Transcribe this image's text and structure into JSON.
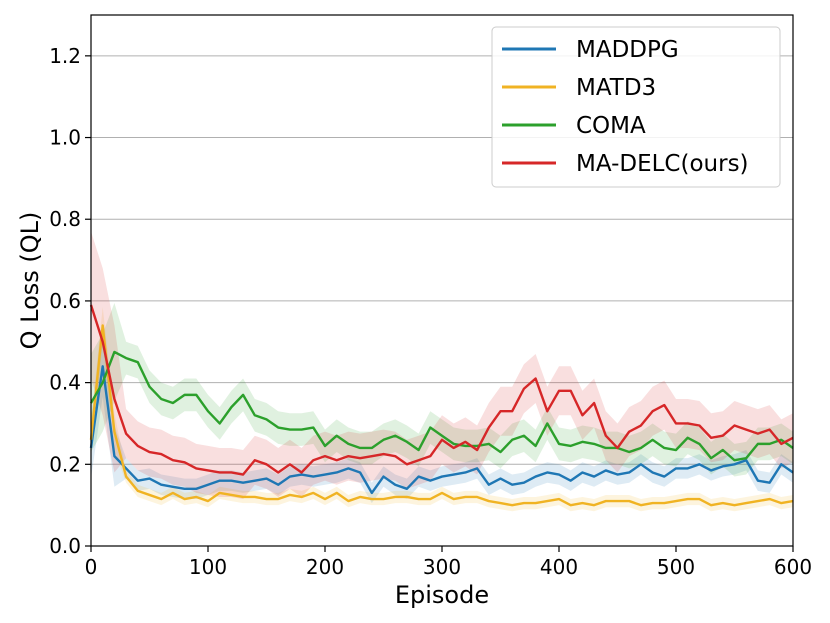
{
  "chart_data": {
    "type": "line",
    "xlabel": "Episode",
    "ylabel": "Q Loss (QL)",
    "xlim": [
      0,
      600
    ],
    "ylim": [
      0,
      1.3
    ],
    "xticks": [
      0,
      100,
      200,
      300,
      400,
      500,
      600
    ],
    "yticks": [
      0.0,
      0.2,
      0.4,
      0.6,
      0.8,
      1.0,
      1.2
    ],
    "xtick_labels": [
      "0",
      "100",
      "200",
      "300",
      "400",
      "500",
      "600"
    ],
    "ytick_labels": [
      "0.0",
      "0.2",
      "0.4",
      "0.6",
      "0.8",
      "1.0",
      "1.2"
    ],
    "grid": "horizontal",
    "legend_position": "top-right",
    "x": [
      0,
      10,
      20,
      30,
      40,
      50,
      60,
      70,
      80,
      90,
      100,
      110,
      120,
      130,
      140,
      150,
      160,
      170,
      180,
      190,
      200,
      210,
      220,
      230,
      240,
      250,
      260,
      270,
      280,
      290,
      300,
      310,
      320,
      330,
      340,
      350,
      360,
      370,
      380,
      390,
      400,
      410,
      420,
      430,
      440,
      450,
      460,
      470,
      480,
      490,
      500,
      510,
      520,
      530,
      540,
      550,
      560,
      570,
      580,
      590,
      600
    ],
    "series": [
      {
        "name": "MADDPG",
        "color": "#1f77b4",
        "values": [
          0.24,
          0.44,
          0.22,
          0.19,
          0.16,
          0.165,
          0.15,
          0.145,
          0.14,
          0.14,
          0.15,
          0.16,
          0.16,
          0.155,
          0.16,
          0.165,
          0.15,
          0.17,
          0.175,
          0.17,
          0.175,
          0.18,
          0.19,
          0.18,
          0.13,
          0.17,
          0.15,
          0.14,
          0.17,
          0.16,
          0.17,
          0.175,
          0.18,
          0.19,
          0.15,
          0.165,
          0.15,
          0.155,
          0.17,
          0.18,
          0.175,
          0.16,
          0.18,
          0.17,
          0.185,
          0.175,
          0.18,
          0.2,
          0.18,
          0.17,
          0.19,
          0.19,
          0.2,
          0.185,
          0.195,
          0.2,
          0.21,
          0.16,
          0.155,
          0.2,
          0.18
        ],
        "band": 0.025
      },
      {
        "name": "MATD3",
        "color": "#f0b323",
        "values": [
          0.26,
          0.54,
          0.28,
          0.17,
          0.135,
          0.125,
          0.115,
          0.13,
          0.115,
          0.12,
          0.11,
          0.13,
          0.125,
          0.12,
          0.12,
          0.115,
          0.115,
          0.125,
          0.12,
          0.13,
          0.115,
          0.13,
          0.11,
          0.12,
          0.115,
          0.115,
          0.12,
          0.12,
          0.115,
          0.115,
          0.13,
          0.115,
          0.12,
          0.12,
          0.11,
          0.105,
          0.1,
          0.105,
          0.105,
          0.11,
          0.115,
          0.1,
          0.105,
          0.1,
          0.11,
          0.11,
          0.11,
          0.1,
          0.105,
          0.105,
          0.11,
          0.115,
          0.115,
          0.1,
          0.105,
          0.1,
          0.105,
          0.11,
          0.115,
          0.105,
          0.11
        ],
        "band": 0.015
      },
      {
        "name": "COMA",
        "color": "#2ca02c",
        "values": [
          0.35,
          0.4,
          0.475,
          0.46,
          0.45,
          0.39,
          0.36,
          0.35,
          0.37,
          0.37,
          0.33,
          0.3,
          0.34,
          0.37,
          0.32,
          0.31,
          0.29,
          0.285,
          0.285,
          0.29,
          0.245,
          0.27,
          0.25,
          0.24,
          0.24,
          0.26,
          0.27,
          0.255,
          0.235,
          0.29,
          0.27,
          0.25,
          0.245,
          0.245,
          0.25,
          0.23,
          0.26,
          0.27,
          0.245,
          0.3,
          0.25,
          0.245,
          0.255,
          0.25,
          0.24,
          0.24,
          0.23,
          0.24,
          0.26,
          0.24,
          0.235,
          0.265,
          0.25,
          0.215,
          0.235,
          0.21,
          0.215,
          0.25,
          0.25,
          0.26,
          0.24
        ],
        "band": 0.04
      },
      {
        "name": "MA-DELC(ours)",
        "color": "#d62728",
        "values": [
          0.59,
          0.5,
          0.36,
          0.275,
          0.245,
          0.23,
          0.225,
          0.21,
          0.205,
          0.19,
          0.185,
          0.18,
          0.18,
          0.175,
          0.21,
          0.2,
          0.18,
          0.2,
          0.18,
          0.21,
          0.22,
          0.21,
          0.22,
          0.215,
          0.22,
          0.225,
          0.22,
          0.2,
          0.21,
          0.22,
          0.26,
          0.24,
          0.255,
          0.235,
          0.29,
          0.33,
          0.33,
          0.385,
          0.41,
          0.33,
          0.38,
          0.38,
          0.32,
          0.35,
          0.27,
          0.24,
          0.28,
          0.295,
          0.33,
          0.345,
          0.3,
          0.3,
          0.295,
          0.265,
          0.27,
          0.295,
          0.285,
          0.275,
          0.285,
          0.25,
          0.265
        ],
        "band": 0.06
      }
    ]
  }
}
